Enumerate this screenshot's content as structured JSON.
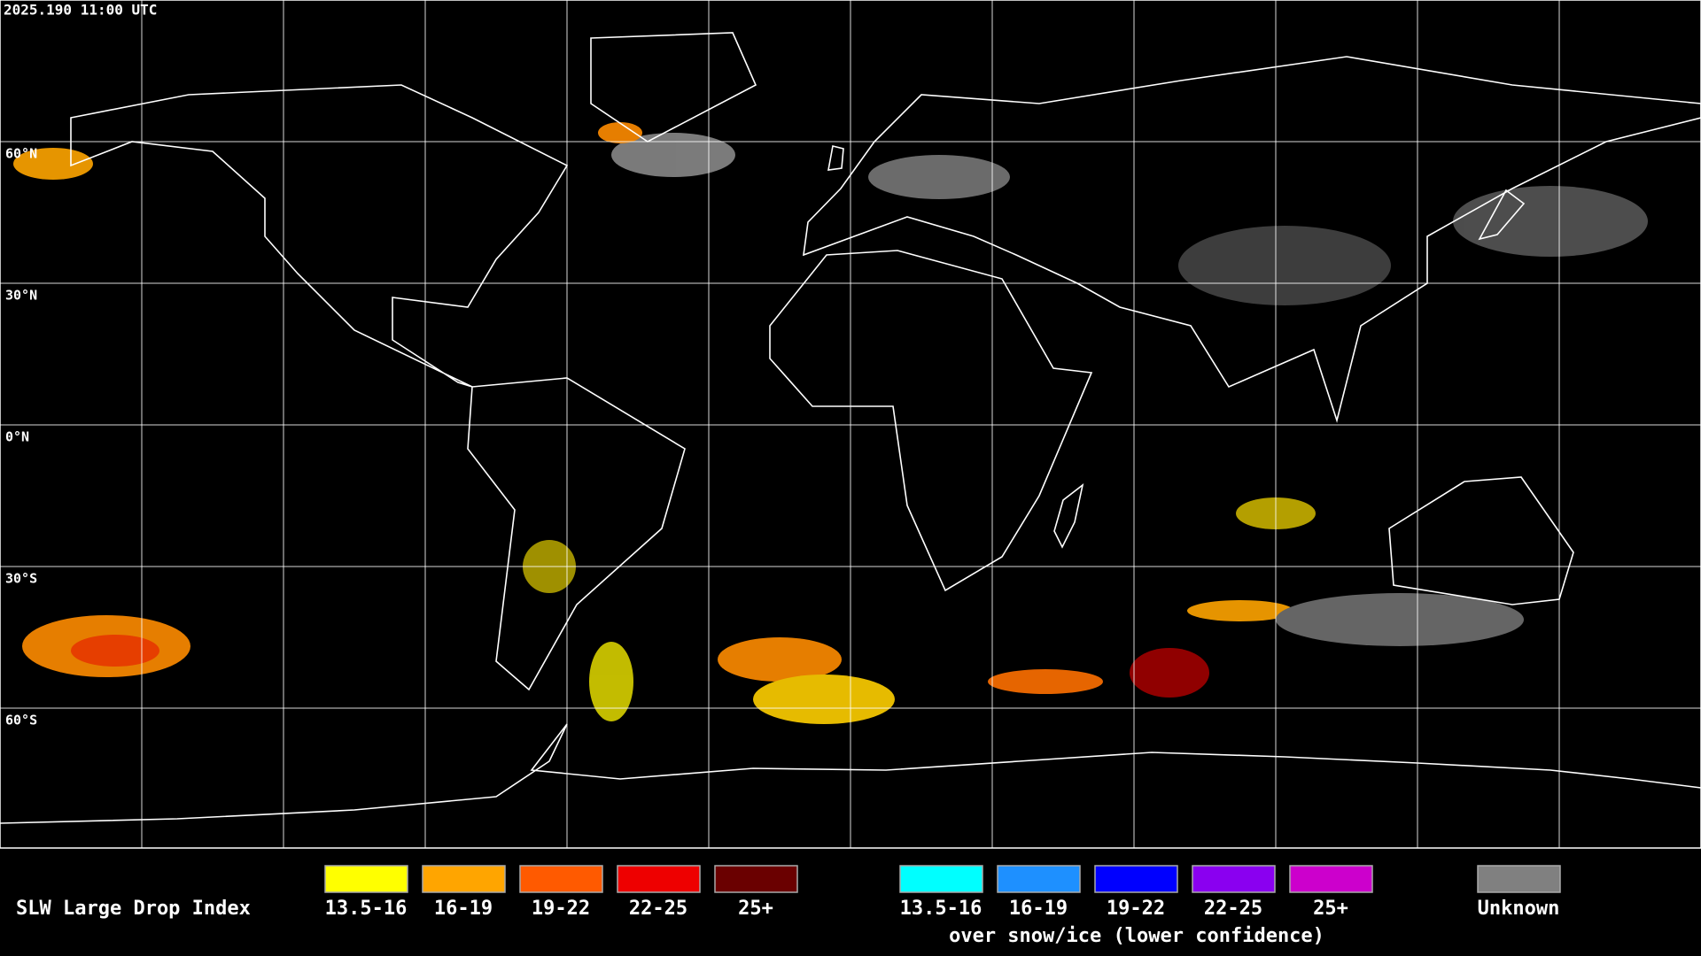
{
  "header": {
    "timestamp": "2025.190 11:00 UTC"
  },
  "map": {
    "latitude_labels": [
      "60°N",
      "30°N",
      "0°N",
      "30°S",
      "60°S"
    ]
  },
  "legend": {
    "title": "SLW Large Drop Index",
    "items": [
      {
        "label": "13.5-16",
        "color": "#ffff00"
      },
      {
        "label": "16-19",
        "color": "#ffa500"
      },
      {
        "label": "19-22",
        "color": "#ff5a00"
      },
      {
        "label": "22-25",
        "color": "#ee0000"
      },
      {
        "label": "25+",
        "color": "#6a0000"
      }
    ],
    "snow_ice_items": [
      {
        "label": "13.5-16",
        "color": "#00ffff"
      },
      {
        "label": "16-19",
        "color": "#1e90ff"
      },
      {
        "label": "19-22",
        "color": "#0000ff"
      },
      {
        "label": "22-25",
        "color": "#8a00f0"
      },
      {
        "label": "25+",
        "color": "#cc00cc"
      }
    ],
    "snow_ice_caption": "over snow/ice (lower confidence)",
    "unknown": {
      "label": "Unknown",
      "color": "#808080"
    }
  }
}
